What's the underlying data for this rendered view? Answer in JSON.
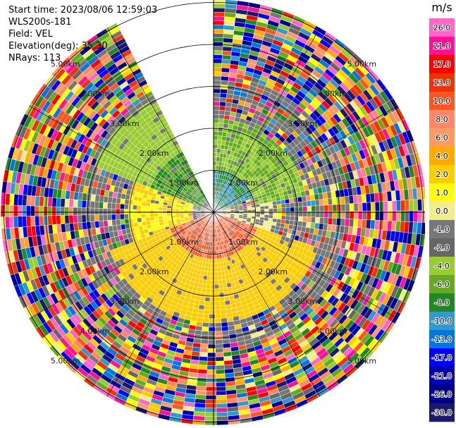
{
  "header": {
    "start_time": "Start time: 2023/08/06 12:59:03",
    "instrument": "WLS200s-181",
    "field": "Field: VEL",
    "elevation": "Elevation(deg): 35.30",
    "nrays": "NRays: 113"
  },
  "chart_data": {
    "type": "heatmap",
    "projection": "polar-ppi",
    "field": "VEL",
    "units": "m/s",
    "range_rings_km": [
      1.0,
      2.0,
      3.0,
      4.0,
      5.0
    ],
    "ring_label_text": [
      "1.00km",
      "2.00km",
      "3.00km",
      "4.00km",
      "5.00km"
    ],
    "grid": true,
    "missing_sector_deg": [
      332,
      360
    ],
    "colorbar": {
      "title": "m/s",
      "tick_labels": [
        "26.0",
        "21.0",
        "17.0",
        "13.0",
        "10.0",
        "8.0",
        "6.0",
        "4.0",
        "2.0",
        "1.0",
        "0.0",
        "-1.0",
        "-2.0",
        "-4.0",
        "-6.0",
        "-8.0",
        "-10.0",
        "-13.0",
        "-17.0",
        "-21.0",
        "-26.0",
        "-30.0"
      ],
      "colors": [
        "#ff66cc",
        "#ff1199",
        "#ff0000",
        "#ee3300",
        "#ff5522",
        "#ff8866",
        "#ff9966",
        "#ffaa00",
        "#ffcc00",
        "#ffff00",
        "#f2ee88",
        "#777777",
        "#666666",
        "#99cc33",
        "#66aa22",
        "#228822",
        "#3399cc",
        "#0077dd",
        "#0000ff",
        "#0000aa",
        "#000088",
        "#191970"
      ]
    },
    "velocity_regions": [
      {
        "azimuth_deg": [
          0,
          70
        ],
        "range_km": [
          0.0,
          1.0
        ],
        "value": -8
      },
      {
        "azimuth_deg": [
          0,
          80
        ],
        "range_km": [
          1.0,
          2.2
        ],
        "value": -4
      },
      {
        "azimuth_deg": [
          80,
          110
        ],
        "range_km": [
          0.0,
          1.5
        ],
        "value": 0
      },
      {
        "azimuth_deg": [
          110,
          250
        ],
        "range_km": [
          0.0,
          1.1
        ],
        "value": 10
      },
      {
        "azimuth_deg": [
          110,
          250
        ],
        "range_km": [
          1.1,
          2.6
        ],
        "value": 3
      },
      {
        "azimuth_deg": [
          250,
          290
        ],
        "range_km": [
          0.5,
          2.0
        ],
        "value": 2
      },
      {
        "azimuth_deg": [
          290,
          332
        ],
        "range_km": [
          0.3,
          1.6
        ],
        "value": -6
      },
      {
        "azimuth_deg": [
          290,
          332
        ],
        "range_km": [
          1.6,
          3.0
        ],
        "value": -3
      }
    ]
  }
}
